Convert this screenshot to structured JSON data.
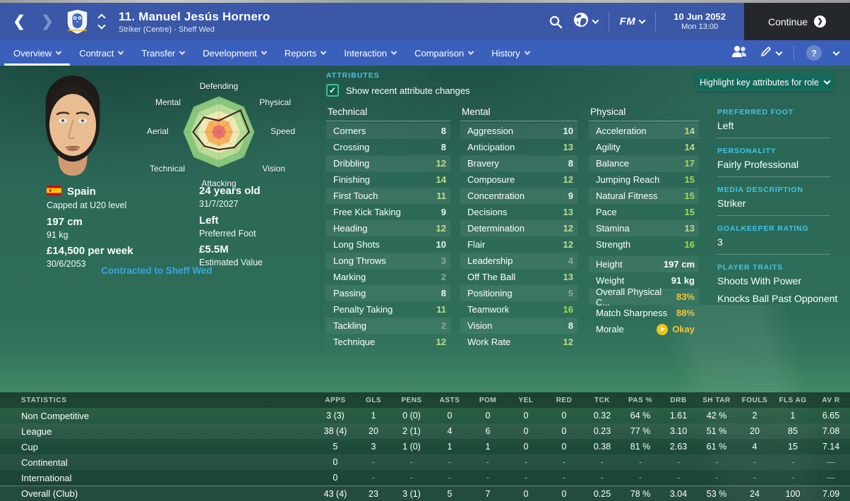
{
  "topbar": {
    "title": "11. Manuel Jesús Hornero",
    "subtitle": "Striker (Centre) - Sheff Wed",
    "fm_label": "FM",
    "date": "10 Jun 2052",
    "time": "Mon 13:00",
    "continue_label": "Continue",
    "continue_arrow": "❯",
    "check_glyph": "✓",
    "help_glyph": "?",
    "morale_arrow": "➤"
  },
  "tabs": [
    {
      "label": "Overview",
      "cls": "active"
    },
    {
      "label": "Contract"
    },
    {
      "label": "Transfer"
    },
    {
      "label": "Development"
    },
    {
      "label": "Reports"
    },
    {
      "label": "Interaction"
    },
    {
      "label": "Comparison"
    },
    {
      "label": "History"
    }
  ],
  "player": {
    "nation": "Spain",
    "capped": "Capped at U20 level",
    "height": "197 cm",
    "weight": "91 kg",
    "wage": "£14,500 per week",
    "contract_expiry": "30/6/2053",
    "age": "24 years old",
    "dob": "31/7/2027",
    "preferred_foot": "Left",
    "preferred_foot_label": "Preferred Foot",
    "value": "£5.5M",
    "value_label": "Estimated Value",
    "contracted_link": "Contracted to Sheff Wed"
  },
  "radar": {
    "labels": [
      "Defending",
      "Physical",
      "Speed",
      "Vision",
      "Attacking",
      "Technical",
      "Aerial",
      "Mental"
    ],
    "values": [
      0.32,
      0.87,
      0.86,
      0.62,
      0.5,
      0.57,
      0.73,
      0.59
    ]
  },
  "attributes": {
    "section_label": "ATTRIBUTES",
    "checkbox_label": "Show recent attribute changes",
    "highlight_button": "Highlight key attributes for role",
    "technical_header": "Technical",
    "mental_header": "Mental",
    "physical_header": "Physical",
    "technical": [
      {
        "label": "Corners",
        "value": "8"
      },
      {
        "label": "Crossing",
        "value": "8"
      },
      {
        "label": "Dribbling",
        "value": "12"
      },
      {
        "label": "Finishing",
        "value": "14"
      },
      {
        "label": "First Touch",
        "value": "11"
      },
      {
        "label": "Free Kick Taking",
        "value": "9"
      },
      {
        "label": "Heading",
        "value": "12"
      },
      {
        "label": "Long Shots",
        "value": "10"
      },
      {
        "label": "Long Throws",
        "value": "3"
      },
      {
        "label": "Marking",
        "value": "2"
      },
      {
        "label": "Passing",
        "value": "8"
      },
      {
        "label": "Penalty Taking",
        "value": "11"
      },
      {
        "label": "Tackling",
        "value": "2"
      },
      {
        "label": "Technique",
        "value": "12"
      }
    ],
    "mental": [
      {
        "label": "Aggression",
        "value": "10"
      },
      {
        "label": "Anticipation",
        "value": "13"
      },
      {
        "label": "Bravery",
        "value": "8"
      },
      {
        "label": "Composure",
        "value": "12"
      },
      {
        "label": "Concentration",
        "value": "9"
      },
      {
        "label": "Decisions",
        "value": "13"
      },
      {
        "label": "Determination",
        "value": "12"
      },
      {
        "label": "Flair",
        "value": "12"
      },
      {
        "label": "Leadership",
        "value": "4"
      },
      {
        "label": "Off The Ball",
        "value": "13"
      },
      {
        "label": "Positioning",
        "value": "5"
      },
      {
        "label": "Teamwork",
        "value": "16"
      },
      {
        "label": "Vision",
        "value": "8"
      },
      {
        "label": "Work Rate",
        "value": "12"
      }
    ],
    "physical": [
      {
        "label": "Acceleration",
        "value": "14"
      },
      {
        "label": "Agility",
        "value": "14"
      },
      {
        "label": "Balance",
        "value": "17"
      },
      {
        "label": "Jumping Reach",
        "value": "15"
      },
      {
        "label": "Natural Fitness",
        "value": "15"
      },
      {
        "label": "Pace",
        "value": "15"
      },
      {
        "label": "Stamina",
        "value": "13"
      },
      {
        "label": "Strength",
        "value": "16"
      }
    ],
    "physical_extra": [
      {
        "label": "Height",
        "value": "197 cm",
        "cls": "x-white"
      },
      {
        "label": "Weight",
        "value": "91 kg",
        "cls": "x-white"
      },
      {
        "label": "Overall Physical C...",
        "value": "83%",
        "cls": "x-yellow"
      },
      {
        "label": "Match Sharpness",
        "value": "88%",
        "cls": "x-yellow"
      }
    ],
    "morale_label": "Morale",
    "morale_value": "Okay"
  },
  "sidebar": {
    "sections": [
      {
        "heading": "PREFERRED FOOT",
        "line1": "Left"
      },
      {
        "heading": "PERSONALITY",
        "line1": "Fairly Professional"
      },
      {
        "heading": "MEDIA DESCRIPTION",
        "line1": "Striker"
      },
      {
        "heading": "GOALKEEPER RATING",
        "line1": "3"
      },
      {
        "heading": "PLAYER TRAITS",
        "line1": "Shoots With Power",
        "line2": "Knocks Ball Past Opponent"
      }
    ]
  },
  "stats": {
    "title": "STATISTICS",
    "columns": [
      "APPS",
      "GLS",
      "PENS",
      "ASTS",
      "POM",
      "YEL",
      "RED",
      "TCK",
      "PAS %",
      "DRB",
      "SH TAR",
      "FOULS",
      "FLS AG",
      "AV R"
    ],
    "rows": [
      {
        "label": "Non Competitive",
        "values": [
          "3 (3)",
          "1",
          "0 (0)",
          "0",
          "0",
          "0",
          "0",
          "0.32",
          "64 %",
          "1.61",
          "42 %",
          "2",
          "1",
          "6.65"
        ]
      },
      {
        "label": "League",
        "values": [
          "38 (4)",
          "20",
          "2 (1)",
          "4",
          "6",
          "0",
          "0",
          "0.23",
          "77 %",
          "3.10",
          "51 %",
          "20",
          "85",
          "7.08"
        ]
      },
      {
        "label": "Cup",
        "values": [
          "5",
          "3",
          "1 (0)",
          "1",
          "1",
          "0",
          "0",
          "0.38",
          "81 %",
          "2.63",
          "61 %",
          "4",
          "15",
          "7.14"
        ]
      },
      {
        "label": "Continental",
        "values": [
          "0",
          "-",
          "-",
          "-",
          "-",
          "-",
          "-",
          "-",
          "-",
          "-",
          "-",
          "-",
          "-",
          "—"
        ]
      },
      {
        "label": "International",
        "values": [
          "0",
          "-",
          "-",
          "-",
          "-",
          "-",
          "-",
          "-",
          "-",
          "-",
          "-",
          "-",
          "-",
          "—"
        ]
      },
      {
        "label": "Overall (Club)",
        "values": [
          "43 (4)",
          "23",
          "3 (1)",
          "5",
          "7",
          "0",
          "0",
          "0.25",
          "78 %",
          "3.04",
          "53 %",
          "24",
          "100",
          "7.09"
        ],
        "cls": "overall"
      }
    ]
  }
}
